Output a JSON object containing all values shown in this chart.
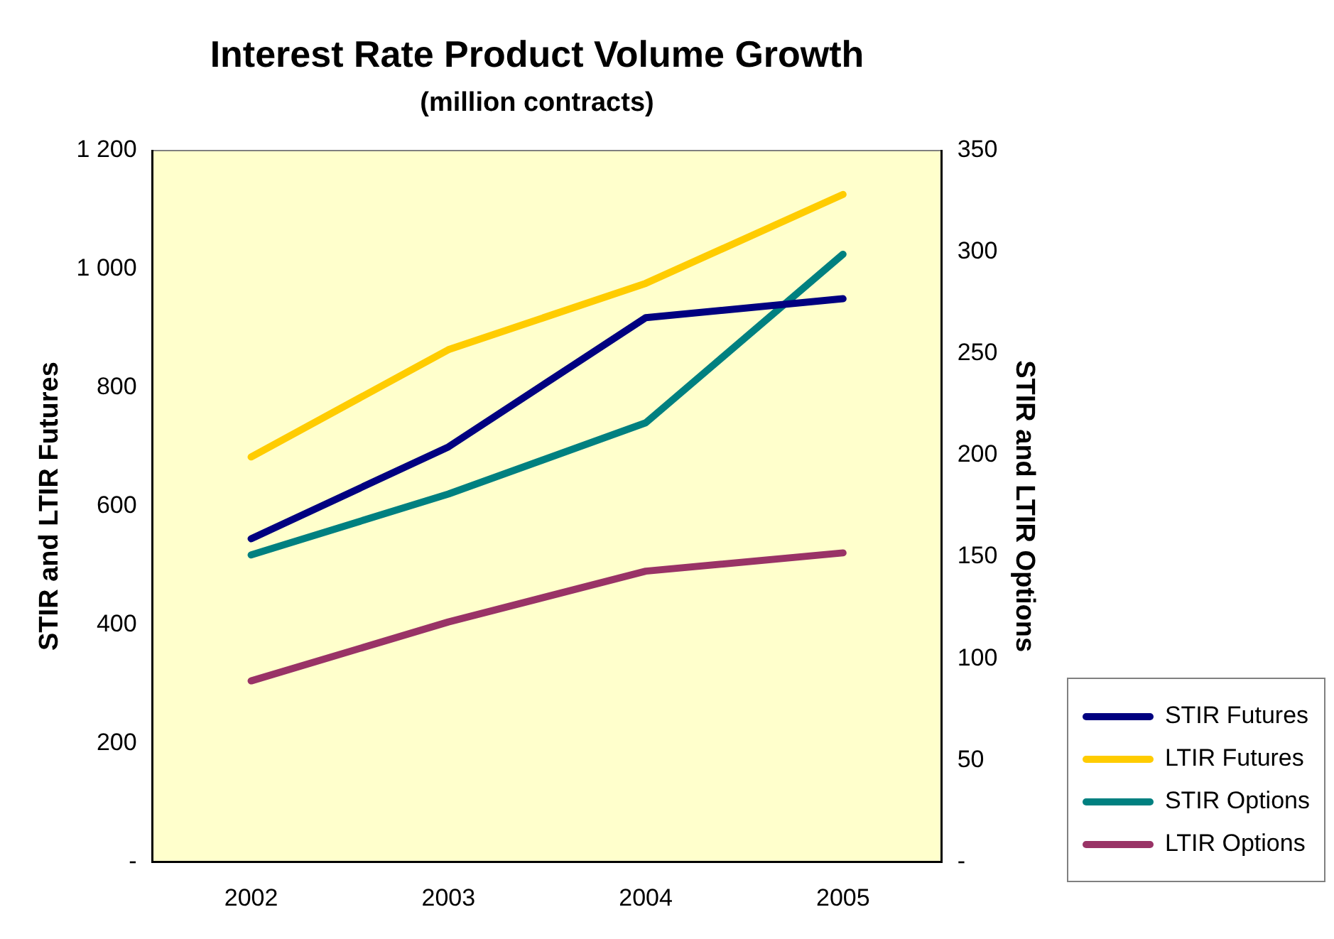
{
  "chart_data": {
    "type": "line",
    "title": "Interest Rate Product Volume Growth",
    "subtitle": "(million contracts)",
    "ylabel": "STIR and LTIR Futures",
    "y2label": "STIR and LTIR Options",
    "categories": [
      "2002",
      "2003",
      "2004",
      "2005"
    ],
    "series": [
      {
        "name": "STIR Futures",
        "color": "#000080",
        "values": [
          545,
          700,
          918,
          950
        ]
      },
      {
        "name": "LTIR Futures",
        "color": "#ffcc00",
        "values": [
          683,
          864,
          976,
          1126
        ]
      },
      {
        "name": "STIR Options",
        "color": "#008080",
        "values": [
          151,
          181,
          216,
          299
        ],
        "axis": "y2"
      },
      {
        "name": "LTIR Options",
        "color": "#993366",
        "values": [
          89,
          118,
          143,
          152
        ],
        "axis": "y2"
      }
    ],
    "ylim": [
      0,
      1200
    ],
    "yticks": [
      {
        "value": 0,
        "label": "-"
      },
      200,
      400,
      600,
      800,
      {
        "value": 1000,
        "label": "1 000"
      },
      {
        "value": 1200,
        "label": "1 200"
      }
    ],
    "y2lim": [
      0,
      350
    ],
    "y2ticks": [
      {
        "value": 0,
        "label": "-"
      },
      50,
      100,
      150,
      200,
      250,
      300,
      350
    ],
    "grid": false,
    "legend": "bottom right",
    "marker": "none",
    "line_style": "solid"
  }
}
